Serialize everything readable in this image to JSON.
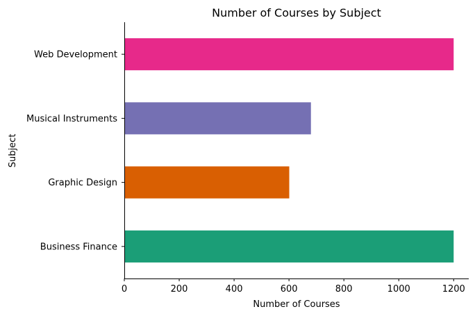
{
  "chart_data": {
    "type": "bar",
    "orientation": "horizontal",
    "title": "Number of Courses by Subject",
    "xlabel": "Number of Courses",
    "ylabel": "Subject",
    "categories": [
      "Business Finance",
      "Graphic Design",
      "Musical Instruments",
      "Web Development"
    ],
    "values": [
      1200,
      601,
      680,
      1200
    ],
    "colors": [
      "#1b9e77",
      "#d95f02",
      "#7570b3",
      "#e7298a"
    ],
    "xlim": [
      0,
      1255
    ],
    "xticks": [
      0,
      200,
      400,
      600,
      800,
      1000,
      1200
    ],
    "grid": false,
    "legend": "none"
  }
}
